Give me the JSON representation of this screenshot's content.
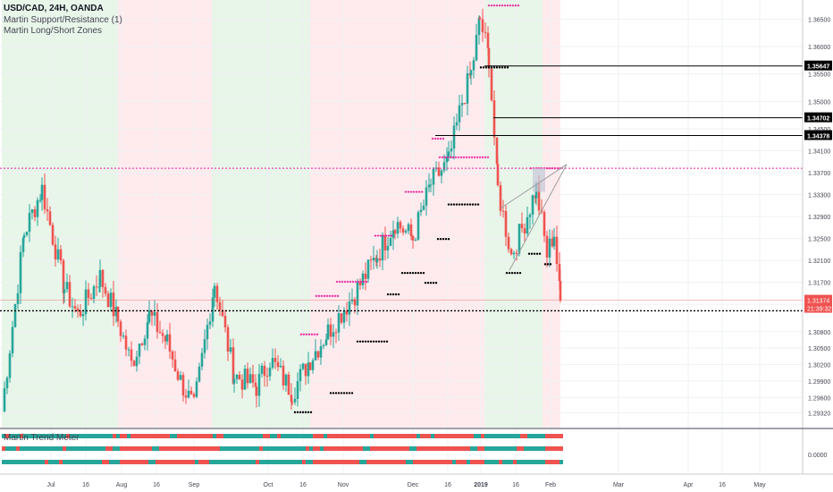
{
  "header": {
    "symbol_line": "USD/CAD, 24H, OANDA",
    "indicators": [
      "Martin Support/Resistance (1)",
      "Martin Long/Short Zones"
    ]
  },
  "subpanel": {
    "title": "Martin Trend Meter",
    "zero_label": "0.0000",
    "row_colors": [
      "#ef5350",
      "#26a69a"
    ]
  },
  "colors": {
    "up": "#26a69a",
    "down": "#ef5350",
    "long_zone": "#e8f5e9",
    "short_zone": "#ffebee",
    "resistance_dots": "#e91e9c",
    "support_dots": "#000000",
    "price_label_bg": "#ef5350",
    "level_label_bg": "#000000",
    "grid": "#eef0f3",
    "axis_text": "#434651",
    "trendline": "#9e9e9e",
    "wedge_box": "#c8c8d8"
  },
  "chart_data": {
    "type": "candlestick",
    "title": "USD/CAD, 24H, OANDA",
    "y_axis": {
      "position": "right",
      "ylim": [
        1.2905,
        1.3685
      ],
      "tick_labels": [
        "1.36500",
        "1.36000",
        "1.35500",
        "1.35000",
        "1.34500",
        "1.34100",
        "1.33700",
        "1.33300",
        "1.32900",
        "1.32500",
        "1.32100",
        "1.31700",
        "1.31300",
        "1.30800",
        "1.30500",
        "1.30200",
        "1.29900",
        "1.29600",
        "1.29320"
      ],
      "tick_values": [
        1.365,
        1.36,
        1.355,
        1.35,
        1.345,
        1.341,
        1.337,
        1.333,
        1.329,
        1.325,
        1.321,
        1.317,
        1.313,
        1.308,
        1.305,
        1.302,
        1.299,
        1.296,
        1.2932
      ]
    },
    "x_axis": {
      "tick_labels": [
        "Jul",
        "16",
        "Aug",
        "16",
        "Sep",
        "Oct",
        "16",
        "Nov",
        "Dec",
        "16",
        "2019",
        "16",
        "Feb",
        "Mar",
        "Apr",
        "16",
        "May"
      ],
      "tick_bar_index": [
        55,
        94,
        134,
        173,
        215,
        298,
        337,
        382,
        460,
        499,
        536,
        575,
        614,
        690,
        768,
        806,
        848
      ]
    },
    "levels": [
      {
        "label": "1.35647",
        "value": 1.35647
      },
      {
        "label": "1.34702",
        "value": 1.34702
      },
      {
        "label": "1.34378",
        "value": 1.34378
      }
    ],
    "last_price": {
      "label": "1.31374",
      "value": 1.31374,
      "countdown": "21:39:32"
    },
    "magenta_line": 1.3378,
    "support_line": 1.3118,
    "zones": [
      {
        "type": "long",
        "from": 0,
        "to": 130
      },
      {
        "type": "short",
        "from": 130,
        "to": 235
      },
      {
        "type": "long",
        "from": 235,
        "to": 345
      },
      {
        "type": "short",
        "from": 345,
        "to": 540
      },
      {
        "type": "long",
        "from": 540,
        "to": 605
      },
      {
        "type": "short",
        "from": 605,
        "to": 625
      }
    ],
    "anchors": [
      {
        "i": 0,
        "p": 1.2935
      },
      {
        "i": 25,
        "p": 1.326
      },
      {
        "i": 45,
        "p": 1.334
      },
      {
        "i": 70,
        "p": 1.316
      },
      {
        "i": 85,
        "p": 1.311
      },
      {
        "i": 110,
        "p": 1.318
      },
      {
        "i": 130,
        "p": 1.31
      },
      {
        "i": 145,
        "p": 1.302
      },
      {
        "i": 165,
        "p": 1.311
      },
      {
        "i": 185,
        "p": 1.306
      },
      {
        "i": 200,
        "p": 1.299
      },
      {
        "i": 215,
        "p": 1.294
      },
      {
        "i": 238,
        "p": 1.317
      },
      {
        "i": 260,
        "p": 1.3
      },
      {
        "i": 285,
        "p": 1.298
      },
      {
        "i": 300,
        "p": 1.303
      },
      {
        "i": 325,
        "p": 1.297
      },
      {
        "i": 345,
        "p": 1.303
      },
      {
        "i": 365,
        "p": 1.308
      },
      {
        "i": 395,
        "p": 1.315
      },
      {
        "i": 420,
        "p": 1.322
      },
      {
        "i": 440,
        "p": 1.328
      },
      {
        "i": 460,
        "p": 1.325
      },
      {
        "i": 480,
        "p": 1.335
      },
      {
        "i": 500,
        "p": 1.339
      },
      {
        "i": 515,
        "p": 1.35
      },
      {
        "i": 525,
        "p": 1.355
      },
      {
        "i": 535,
        "p": 1.365
      },
      {
        "i": 545,
        "p": 1.358
      },
      {
        "i": 555,
        "p": 1.334
      },
      {
        "i": 570,
        "p": 1.322
      },
      {
        "i": 585,
        "p": 1.328
      },
      {
        "i": 598,
        "p": 1.334
      },
      {
        "i": 610,
        "p": 1.322
      },
      {
        "i": 618,
        "p": 1.326
      },
      {
        "i": 625,
        "p": 1.3137
      }
    ],
    "resistance_dots": [
      {
        "from": 545,
        "to": 578,
        "value": 1.3675
      },
      {
        "from": 490,
        "to": 545,
        "value": 1.3398
      },
      {
        "from": 482,
        "to": 495,
        "value": 1.3432
      },
      {
        "from": 418,
        "to": 436,
        "value": 1.3255
      },
      {
        "from": 375,
        "to": 410,
        "value": 1.3171
      },
      {
        "from": 352,
        "to": 376,
        "value": 1.3145
      },
      {
        "from": 335,
        "to": 354,
        "value": 1.3075
      },
      {
        "from": 452,
        "to": 470,
        "value": 1.3335
      },
      {
        "from": 592,
        "to": 625,
        "value": 1.3378
      }
    ],
    "support_dots": [
      {
        "from": 536,
        "to": 568,
        "value": 1.3562
      },
      {
        "from": 500,
        "to": 535,
        "value": 1.3312
      },
      {
        "from": 488,
        "to": 500,
        "value": 1.3249
      },
      {
        "from": 448,
        "to": 472,
        "value": 1.3187
      },
      {
        "from": 474,
        "to": 488,
        "value": 1.3169
      },
      {
        "from": 432,
        "to": 446,
        "value": 1.3148
      },
      {
        "from": 398,
        "to": 432,
        "value": 1.3062
      },
      {
        "from": 368,
        "to": 394,
        "value": 1.2968
      },
      {
        "from": 328,
        "to": 346,
        "value": 1.2933
      },
      {
        "from": 565,
        "to": 580,
        "value": 1.3187
      },
      {
        "from": 590,
        "to": 604,
        "value": 1.3222
      },
      {
        "from": 608,
        "to": 616,
        "value": 1.3203
      }
    ]
  }
}
